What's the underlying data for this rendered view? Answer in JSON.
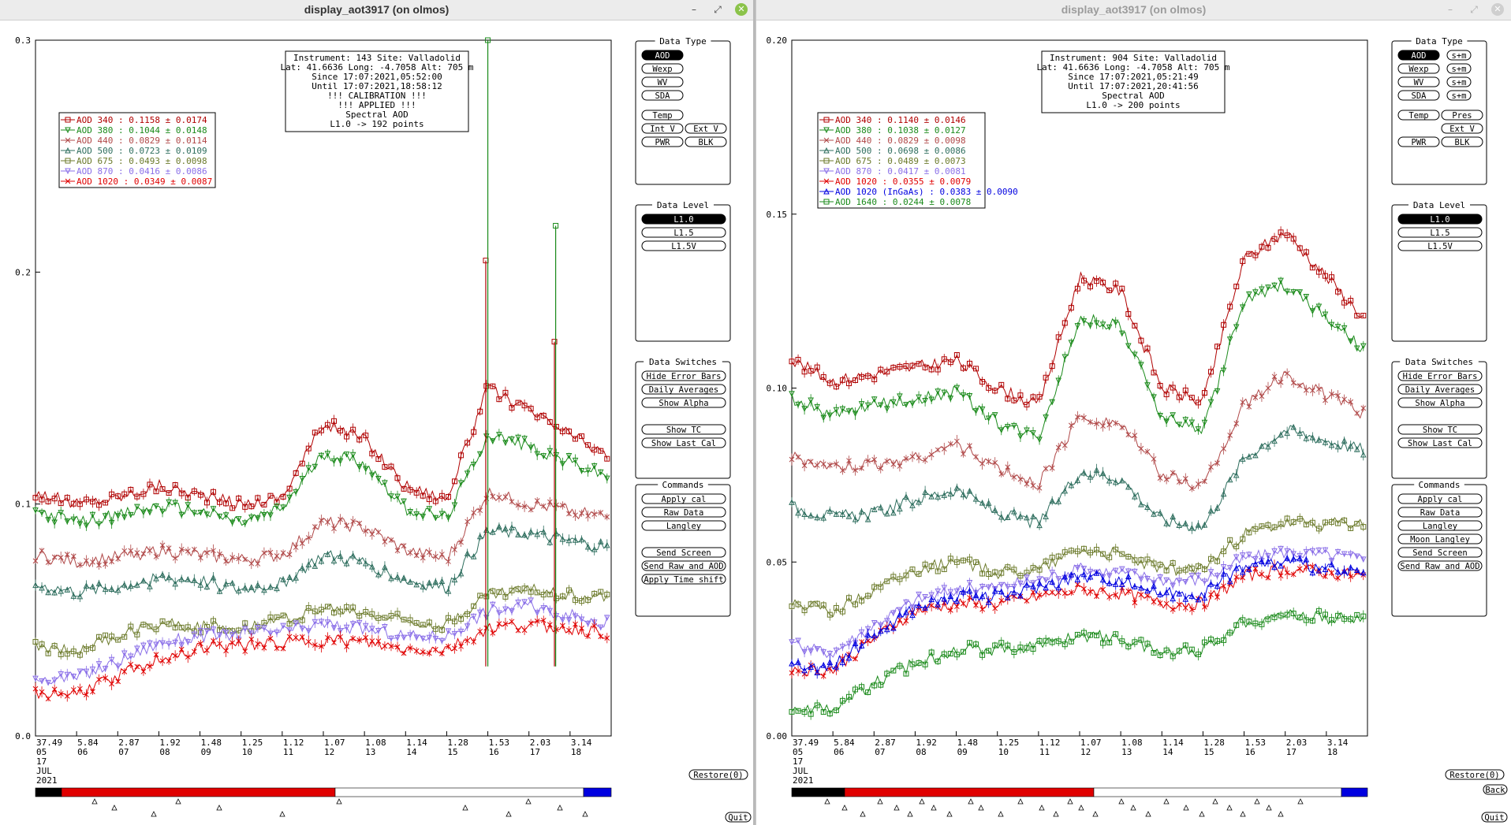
{
  "windows": [
    {
      "title": "display_aot3917 (on olmos)",
      "info": [
        "Instrument: 143 Site: Valladolid",
        "Lat: 41.6636 Long: -4.7058 Alt: 705 m",
        "Since 17:07:2021,05:52:00",
        "Until 17:07:2021,18:58:12",
        "!!! CALIBRATION !!!",
        "!!!   APPLIED   !!!",
        "Spectral AOD",
        "L1.0 -> 192 points"
      ],
      "legend": [
        {
          "label": "AOD 340  : 0.1158 ± 0.0174",
          "color": "#b00000",
          "marker": "square"
        },
        {
          "label": "AOD 380  : 0.1044 ± 0.0148",
          "color": "#1a8a1a",
          "marker": "tri-down"
        },
        {
          "label": "AOD 440  : 0.0829 ± 0.0114",
          "color": "#b04848",
          "marker": "x"
        },
        {
          "label": "AOD 500  : 0.0723 ± 0.0109",
          "color": "#2e6e5e",
          "marker": "tri-up"
        },
        {
          "label": "AOD 675  : 0.0493 ± 0.0098",
          "color": "#6b7a2a",
          "marker": "square"
        },
        {
          "label": "AOD 870  : 0.0416 ± 0.0086",
          "color": "#8a6fe8",
          "marker": "tri-down"
        },
        {
          "label": "AOD 1020  : 0.0349 ± 0.0087",
          "color": "#e00000",
          "marker": "x"
        }
      ],
      "y_ticks": [
        "0.0",
        "0.1",
        "0.2",
        "0.3"
      ],
      "x_ticks": [
        [
          "37.49",
          "05"
        ],
        [
          "5.84",
          "06"
        ],
        [
          "2.87",
          "07"
        ],
        [
          "1.92",
          "08"
        ],
        [
          "1.48",
          "09"
        ],
        [
          "1.25",
          "10"
        ],
        [
          "1.12",
          "11"
        ],
        [
          "1.07",
          "12"
        ],
        [
          "1.08",
          "13"
        ],
        [
          "1.14",
          "14"
        ],
        [
          "1.28",
          "15"
        ],
        [
          "1.53",
          "16"
        ],
        [
          "2.03",
          "17"
        ],
        [
          "3.14",
          "18"
        ]
      ],
      "date": [
        "17",
        "JUL",
        "2021"
      ],
      "data_type": {
        "title": "Data Type",
        "buttons": [
          "AOD",
          "Wexp",
          "WV",
          "SDA",
          "Temp",
          "Int V",
          "Ext V",
          "PWR",
          "BLK"
        ]
      },
      "data_level": {
        "title": "Data Level",
        "buttons": [
          "L1.0",
          "L1.5",
          "L1.5V"
        ]
      },
      "switches": {
        "title": "Data Switches",
        "buttons": [
          "Hide Error Bars",
          "Daily Averages",
          "Show Alpha",
          "Show TC",
          "Show Last Cal"
        ]
      },
      "commands": {
        "title": "Commands",
        "buttons": [
          "Apply cal",
          "Raw Data",
          "Langley",
          "Send Screen",
          "Send Raw and AOD",
          "Apply Time shift"
        ]
      },
      "restore_label": "Restore(0)",
      "quit_label": "Quit"
    },
    {
      "title": "display_aot3917 (on olmos)",
      "info": [
        "Instrument: 904 Site: Valladolid",
        "Lat: 41.6636 Long: -4.7058 Alt: 705 m",
        "Since 17:07:2021,05:21:49",
        "Until 17:07:2021,20:41:56",
        "Spectral AOD",
        "L1.0 -> 200 points"
      ],
      "legend": [
        {
          "label": "AOD 340  : 0.1140 ± 0.0146",
          "color": "#b00000",
          "marker": "square"
        },
        {
          "label": "AOD 380  : 0.1038 ± 0.0127",
          "color": "#1a8a1a",
          "marker": "tri-down"
        },
        {
          "label": "AOD 440  : 0.0829 ± 0.0098",
          "color": "#b04848",
          "marker": "x"
        },
        {
          "label": "AOD 500  : 0.0698 ± 0.0086",
          "color": "#2e6e5e",
          "marker": "tri-up"
        },
        {
          "label": "AOD 675  : 0.0489 ± 0.0073",
          "color": "#6b7a2a",
          "marker": "square"
        },
        {
          "label": "AOD 870  : 0.0417 ± 0.0081",
          "color": "#8a6fe8",
          "marker": "tri-down"
        },
        {
          "label": "AOD 1020  : 0.0355 ± 0.0079",
          "color": "#e00000",
          "marker": "x"
        },
        {
          "label": "AOD 1020 (InGaAs)  : 0.0383 ± 0.0090",
          "color": "#0000e0",
          "marker": "tri-up"
        },
        {
          "label": "AOD 1640  : 0.0244 ± 0.0078",
          "color": "#1a8a1a",
          "marker": "square"
        }
      ],
      "y_ticks": [
        "0.00",
        "0.05",
        "0.10",
        "0.15",
        "0.20"
      ],
      "x_ticks": [
        [
          "37.49",
          "05"
        ],
        [
          "5.84",
          "06"
        ],
        [
          "2.87",
          "07"
        ],
        [
          "1.92",
          "08"
        ],
        [
          "1.48",
          "09"
        ],
        [
          "1.25",
          "10"
        ],
        [
          "1.12",
          "11"
        ],
        [
          "1.07",
          "12"
        ],
        [
          "1.08",
          "13"
        ],
        [
          "1.14",
          "14"
        ],
        [
          "1.28",
          "15"
        ],
        [
          "1.53",
          "16"
        ],
        [
          "2.03",
          "17"
        ],
        [
          "3.14",
          "18"
        ]
      ],
      "date": [
        "17",
        "JUL",
        "2021"
      ],
      "data_type": {
        "title": "Data Type",
        "buttons": [
          "AOD",
          "s+m",
          "Wexp",
          "s+m",
          "WV",
          "s+m",
          "SDA",
          "s+m",
          "Temp",
          "Pres",
          "Ext V",
          "PWR",
          "BLK"
        ]
      },
      "data_level": {
        "title": "Data Level",
        "buttons": [
          "L1.0",
          "L1.5",
          "L1.5V"
        ]
      },
      "switches": {
        "title": "Data Switches",
        "buttons": [
          "Hide Error Bars",
          "Daily Averages",
          "Show Alpha",
          "Show TC",
          "Show Last Cal"
        ]
      },
      "commands": {
        "title": "Commands",
        "buttons": [
          "Apply cal",
          "Raw Data",
          "Langley",
          "Moon Langley",
          "Send Screen",
          "Send Raw and AOD"
        ]
      },
      "restore_label": "Restore(0)",
      "back_label": "Back",
      "quit_label": "Quit"
    }
  ],
  "chart_data": [
    {
      "type": "line",
      "ylim": [
        0,
        0.3
      ],
      "x": [
        5,
        6,
        7,
        8,
        9,
        10,
        11,
        12,
        13,
        14,
        15,
        16,
        17,
        18
      ],
      "series": [
        {
          "name": "AOD 340",
          "values": [
            0.105,
            0.1,
            0.103,
            0.108,
            0.104,
            0.1,
            0.103,
            0.135,
            0.128,
            0.108,
            0.102,
            0.15,
            0.14,
            0.13
          ]
        },
        {
          "name": "AOD 380",
          "values": [
            0.097,
            0.092,
            0.095,
            0.099,
            0.097,
            0.092,
            0.098,
            0.122,
            0.118,
            0.098,
            0.094,
            0.13,
            0.125,
            0.118
          ]
        },
        {
          "name": "AOD 440",
          "values": [
            0.078,
            0.075,
            0.077,
            0.08,
            0.078,
            0.076,
            0.078,
            0.092,
            0.09,
            0.08,
            0.076,
            0.105,
            0.1,
            0.097
          ]
        },
        {
          "name": "AOD 500",
          "values": [
            0.065,
            0.062,
            0.064,
            0.068,
            0.067,
            0.063,
            0.066,
            0.078,
            0.075,
            0.067,
            0.064,
            0.088,
            0.087,
            0.084
          ]
        },
        {
          "name": "AOD 675",
          "values": [
            0.038,
            0.037,
            0.043,
            0.049,
            0.047,
            0.047,
            0.05,
            0.055,
            0.053,
            0.05,
            0.048,
            0.061,
            0.063,
            0.061
          ]
        },
        {
          "name": "AOD 870",
          "values": [
            0.025,
            0.025,
            0.032,
            0.04,
            0.043,
            0.044,
            0.045,
            0.048,
            0.046,
            0.043,
            0.043,
            0.054,
            0.056,
            0.052
          ]
        },
        {
          "name": "AOD 1020",
          "values": [
            0.018,
            0.018,
            0.026,
            0.033,
            0.038,
            0.039,
            0.04,
            0.041,
            0.04,
            0.037,
            0.037,
            0.046,
            0.048,
            0.046
          ]
        }
      ]
    },
    {
      "type": "line",
      "ylim": [
        0,
        0.2
      ],
      "x": [
        5,
        6,
        7,
        8,
        9,
        10,
        11,
        12,
        13,
        14,
        15,
        16,
        17,
        18
      ],
      "series": [
        {
          "name": "AOD 340",
          "values": [
            0.108,
            0.102,
            0.104,
            0.106,
            0.108,
            0.1,
            0.095,
            0.132,
            0.128,
            0.1,
            0.096,
            0.137,
            0.145,
            0.132
          ]
        },
        {
          "name": "AOD 380",
          "values": [
            0.097,
            0.092,
            0.095,
            0.097,
            0.099,
            0.09,
            0.086,
            0.12,
            0.118,
            0.092,
            0.088,
            0.125,
            0.13,
            0.12
          ]
        },
        {
          "name": "AOD 440",
          "values": [
            0.08,
            0.077,
            0.078,
            0.08,
            0.084,
            0.077,
            0.072,
            0.092,
            0.09,
            0.075,
            0.072,
            0.095,
            0.104,
            0.098
          ]
        },
        {
          "name": "AOD 500",
          "values": [
            0.066,
            0.063,
            0.064,
            0.068,
            0.071,
            0.064,
            0.061,
            0.076,
            0.074,
            0.062,
            0.06,
            0.08,
            0.088,
            0.085
          ]
        },
        {
          "name": "AOD 675",
          "values": [
            0.038,
            0.036,
            0.042,
            0.048,
            0.05,
            0.047,
            0.048,
            0.054,
            0.052,
            0.048,
            0.048,
            0.058,
            0.061,
            0.061
          ]
        },
        {
          "name": "AOD 870",
          "values": [
            0.026,
            0.024,
            0.032,
            0.039,
            0.042,
            0.043,
            0.045,
            0.048,
            0.047,
            0.045,
            0.045,
            0.051,
            0.053,
            0.052
          ]
        },
        {
          "name": "AOD 1020",
          "values": [
            0.019,
            0.019,
            0.028,
            0.036,
            0.038,
            0.038,
            0.04,
            0.042,
            0.041,
            0.038,
            0.038,
            0.046,
            0.048,
            0.047
          ]
        },
        {
          "name": "AOD 1020 (InGaAs)",
          "values": [
            0.02,
            0.02,
            0.029,
            0.037,
            0.04,
            0.04,
            0.043,
            0.046,
            0.045,
            0.041,
            0.041,
            0.049,
            0.05,
            0.048
          ]
        },
        {
          "name": "AOD 1640",
          "values": [
            0.008,
            0.008,
            0.015,
            0.021,
            0.025,
            0.025,
            0.026,
            0.029,
            0.028,
            0.024,
            0.025,
            0.033,
            0.035,
            0.034
          ]
        }
      ]
    }
  ]
}
